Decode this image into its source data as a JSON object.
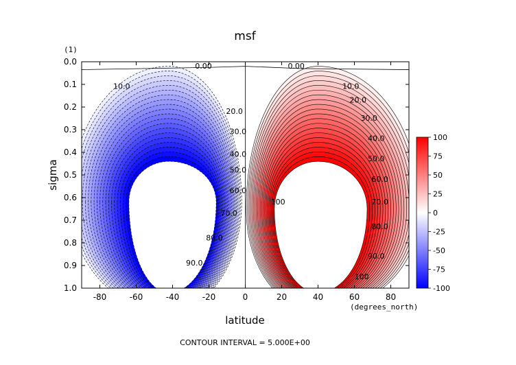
{
  "chart_data": {
    "type": "contour",
    "title": "msf",
    "xlabel": "latitude",
    "x_units": "(degrees_north)",
    "ylabel": "sigma",
    "y_units": "(1)",
    "xlim": [
      -90,
      90
    ],
    "ylim": [
      0.0,
      1.0
    ],
    "y_inverted": true,
    "x_ticks": [
      -80,
      -60,
      -40,
      -20,
      0,
      20,
      40,
      60,
      80
    ],
    "y_ticks": [
      0.0,
      0.1,
      0.2,
      0.3,
      0.4,
      0.5,
      0.6,
      0.7,
      0.8,
      0.9,
      1.0
    ],
    "x_tick_labels": [
      "-80",
      "-60",
      "-40",
      "-20",
      "0",
      "20",
      "40",
      "60",
      "80"
    ],
    "y_tick_labels": [
      "0.0",
      "0.1",
      "0.2",
      "0.3",
      "0.4",
      "0.5",
      "0.6",
      "0.7",
      "0.8",
      "0.9",
      "1.0"
    ],
    "footer": "CONTOUR INTERVAL = 5.000E+00",
    "contour_interval": 5.0,
    "contour_labels": [
      {
        "text": "0.00",
        "lat": -23,
        "sigma": 0.03
      },
      {
        "text": "0.00",
        "lat": 28,
        "sigma": 0.03
      },
      {
        "text": "10.0",
        "lat": -68,
        "sigma": 0.12
      },
      {
        "text": "20.0",
        "lat": -6,
        "sigma": 0.23
      },
      {
        "text": "30.0",
        "lat": -4,
        "sigma": 0.32
      },
      {
        "text": "40.0",
        "lat": -4,
        "sigma": 0.42
      },
      {
        "text": "50.0",
        "lat": -4,
        "sigma": 0.49
      },
      {
        "text": "60.0",
        "lat": -4,
        "sigma": 0.58
      },
      {
        "text": "70.0",
        "lat": -9,
        "sigma": 0.68
      },
      {
        "text": "80.0",
        "lat": -17,
        "sigma": 0.79
      },
      {
        "text": "90.0",
        "lat": -28,
        "sigma": 0.9
      },
      {
        "text": "10.0",
        "lat": 58,
        "sigma": 0.12
      },
      {
        "text": "20.0",
        "lat": 62,
        "sigma": 0.18
      },
      {
        "text": "30.0",
        "lat": 68,
        "sigma": 0.26
      },
      {
        "text": "40.0",
        "lat": 72,
        "sigma": 0.35
      },
      {
        "text": "50.0",
        "lat": 72,
        "sigma": 0.44
      },
      {
        "text": "60.0",
        "lat": 74,
        "sigma": 0.53
      },
      {
        "text": "70.0",
        "lat": 74,
        "sigma": 0.63
      },
      {
        "text": "80.0",
        "lat": 74,
        "sigma": 0.74
      },
      {
        "text": "90.0",
        "lat": 72,
        "sigma": 0.87
      },
      {
        "text": "100",
        "lat": 64,
        "sigma": 0.96
      },
      {
        "text": "100",
        "lat": 18,
        "sigma": 0.63
      }
    ],
    "colorbar": {
      "ticks": [
        100,
        75,
        50,
        25,
        0,
        -25,
        -50,
        -75,
        -100
      ],
      "range": [
        -100,
        100
      ],
      "max_color": "#ff0000",
      "mid_color": "#ffffff",
      "min_color": "#0000ff"
    },
    "cells": [
      {
        "name": "southern-cell",
        "sign": -1,
        "center_lat": -42,
        "center_sigma": 0.62
      },
      {
        "name": "northern-cell",
        "sign": 1,
        "center_lat": 40,
        "center_sigma": 0.65
      }
    ]
  }
}
